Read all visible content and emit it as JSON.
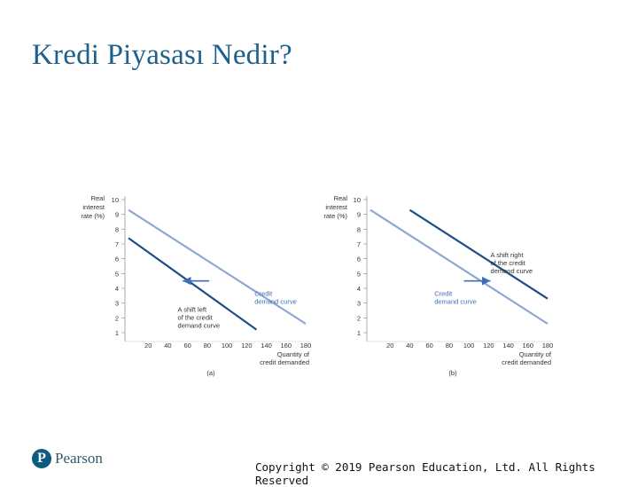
{
  "slide": {
    "title": "Kredi Piyasası Nedir?",
    "copyright": "Copyright © 2019 Pearson Education, Ltd. All Rights Reserved",
    "logo_text": "Pearson",
    "logo_letter": "P"
  },
  "colors": {
    "original_curve": "#8ea6d6",
    "shifted_curve": "#1b4f86",
    "annotation": "#3e6fb5",
    "title": "#1f5f8b"
  },
  "chart_data": [
    {
      "type": "line",
      "panel_label": "(a)",
      "ylabel_lines": [
        "Real",
        "interest",
        "rate (%)"
      ],
      "xlabel_lines": [
        "Quantity of",
        "credit demanded"
      ],
      "xlim": [
        0,
        180
      ],
      "ylim": [
        0,
        10
      ],
      "x_ticks": [
        20,
        40,
        60,
        80,
        100,
        120,
        140,
        160,
        180
      ],
      "y_ticks": [
        1,
        2,
        3,
        4,
        5,
        6,
        7,
        8,
        9,
        10
      ],
      "series": [
        {
          "role": "original",
          "x": [
            0,
            180
          ],
          "y": [
            9.3,
            1.6
          ]
        },
        {
          "role": "shifted",
          "x": [
            0,
            130
          ],
          "y": [
            7.4,
            1.2
          ]
        }
      ],
      "annotations": [
        {
          "lines": [
            "Credit",
            "demand curve"
          ],
          "x": 128,
          "y": 3.5
        },
        {
          "lines": [
            "A shift left",
            "of the credit",
            "demand curve"
          ],
          "x": 50,
          "y": 2.4
        }
      ],
      "arrow": {
        "from": [
          82,
          4.5
        ],
        "to": [
          55,
          4.5
        ]
      }
    },
    {
      "type": "line",
      "panel_label": "(b)",
      "ylabel_lines": [
        "Real",
        "interest",
        "rate (%)"
      ],
      "xlabel_lines": [
        "Quantity of",
        "credit demanded"
      ],
      "xlim": [
        0,
        180
      ],
      "ylim": [
        0,
        10
      ],
      "x_ticks": [
        20,
        40,
        60,
        80,
        100,
        120,
        140,
        160,
        180
      ],
      "y_ticks": [
        1,
        2,
        3,
        4,
        5,
        6,
        7,
        8,
        9,
        10
      ],
      "series": [
        {
          "role": "original",
          "x": [
            0,
            180
          ],
          "y": [
            9.3,
            1.6
          ]
        },
        {
          "role": "shifted",
          "x": [
            40,
            180
          ],
          "y": [
            9.3,
            3.3
          ]
        }
      ],
      "annotations": [
        {
          "lines": [
            "Credit",
            "demand curve"
          ],
          "x": 65,
          "y": 3.5
        },
        {
          "lines": [
            "A shift right",
            "of the credit",
            "demand curve"
          ],
          "x": 122,
          "y": 6.1
        }
      ],
      "arrow": {
        "from": [
          95,
          4.5
        ],
        "to": [
          122,
          4.5
        ]
      }
    }
  ]
}
